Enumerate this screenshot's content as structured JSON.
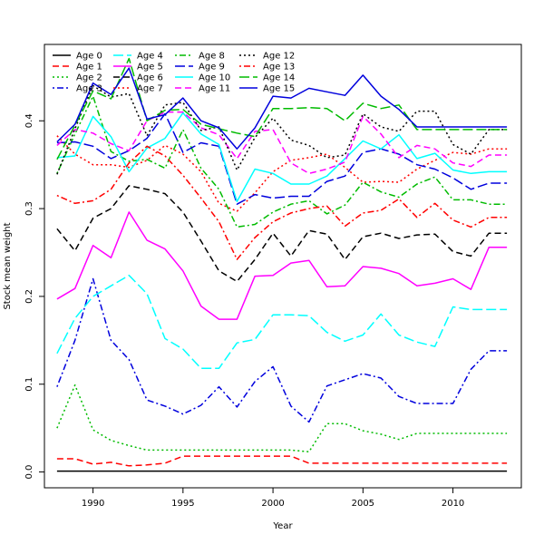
{
  "chart_data": {
    "type": "line",
    "title": "",
    "xlabel": "Year",
    "ylabel": "Stock mean weight",
    "xlim": [
      1987.3,
      2013.8
    ],
    "ylim": [
      -0.018,
      0.487
    ],
    "xticks": [
      1990,
      1995,
      2000,
      2005,
      2010
    ],
    "yticks": [
      0.0,
      0.1,
      0.2,
      0.3,
      0.4
    ],
    "ytick_labels": [
      "0.0",
      "0.1",
      "0.2",
      "0.3",
      "0.4"
    ],
    "grid": false,
    "legend_position": "top-left",
    "x": [
      1988,
      1989,
      1990,
      1991,
      1992,
      1993,
      1994,
      1995,
      1996,
      1997,
      1998,
      1999,
      2000,
      2001,
      2002,
      2003,
      2004,
      2005,
      2006,
      2007,
      2008,
      2009,
      2010,
      2011,
      2012,
      2013
    ],
    "series": [
      {
        "name": "Age 0",
        "color": "#000000",
        "dash": "solid",
        "values": [
          0.001,
          0.001,
          0.001,
          0.001,
          0.001,
          0.001,
          0.001,
          0.001,
          0.001,
          0.001,
          0.001,
          0.001,
          0.001,
          0.001,
          0.001,
          0.001,
          0.001,
          0.001,
          0.001,
          0.001,
          0.001,
          0.001,
          0.001,
          0.001,
          0.001,
          0.001
        ]
      },
      {
        "name": "Age 1",
        "color": "#ff0000",
        "dash": "dashed",
        "values": [
          0.015,
          0.015,
          0.009,
          0.011,
          0.007,
          0.008,
          0.01,
          0.018,
          0.018,
          0.018,
          0.018,
          0.018,
          0.018,
          0.018,
          0.01,
          0.01,
          0.01,
          0.01,
          0.01,
          0.01,
          0.01,
          0.01,
          0.01,
          0.01,
          0.01,
          0.01
        ]
      },
      {
        "name": "Age 2",
        "color": "#00bb00",
        "dash": "dotted",
        "values": [
          0.05,
          0.099,
          0.048,
          0.036,
          0.03,
          0.025,
          0.025,
          0.025,
          0.025,
          0.025,
          0.025,
          0.025,
          0.025,
          0.025,
          0.023,
          0.055,
          0.055,
          0.047,
          0.043,
          0.037,
          0.044,
          0.044,
          0.044,
          0.044,
          0.044,
          0.044
        ]
      },
      {
        "name": "Age 3",
        "color": "#0000dd",
        "dash": "dotdash",
        "values": [
          0.097,
          0.15,
          0.22,
          0.15,
          0.128,
          0.082,
          0.075,
          0.066,
          0.076,
          0.097,
          0.074,
          0.103,
          0.12,
          0.075,
          0.057,
          0.098,
          0.105,
          0.112,
          0.107,
          0.086,
          0.078,
          0.078,
          0.078,
          0.117,
          0.138,
          0.138
        ]
      },
      {
        "name": "Age 4",
        "color": "#00ffff",
        "dash": "longdash",
        "values": [
          0.135,
          0.175,
          0.2,
          0.212,
          0.224,
          0.203,
          0.152,
          0.14,
          0.118,
          0.118,
          0.147,
          0.151,
          0.179,
          0.179,
          0.178,
          0.159,
          0.149,
          0.156,
          0.18,
          0.156,
          0.148,
          0.143,
          0.188,
          0.185,
          0.185,
          0.185
        ]
      },
      {
        "name": "Age 5",
        "color": "#ff00ff",
        "dash": "solid",
        "values": [
          0.197,
          0.209,
          0.258,
          0.244,
          0.296,
          0.264,
          0.254,
          0.229,
          0.189,
          0.174,
          0.174,
          0.223,
          0.224,
          0.238,
          0.241,
          0.211,
          0.212,
          0.234,
          0.232,
          0.226,
          0.212,
          0.215,
          0.22,
          0.208,
          0.256,
          0.256
        ]
      },
      {
        "name": "Age 6",
        "color": "#000000",
        "dash": "dashed",
        "values": [
          0.277,
          0.252,
          0.289,
          0.3,
          0.326,
          0.322,
          0.317,
          0.296,
          0.263,
          0.229,
          0.217,
          0.242,
          0.272,
          0.246,
          0.275,
          0.271,
          0.242,
          0.268,
          0.272,
          0.266,
          0.27,
          0.271,
          0.251,
          0.246,
          0.272,
          0.272
        ]
      },
      {
        "name": "Age 7",
        "color": "#ff0000",
        "dash": "dotted",
        "values": [
          0.383,
          0.362,
          0.35,
          0.35,
          0.347,
          0.355,
          0.372,
          0.362,
          0.342,
          0.306,
          0.297,
          0.318,
          0.342,
          0.355,
          0.358,
          0.362,
          0.347,
          0.33,
          0.331,
          0.33,
          0.345,
          0.355,
          0.364,
          0.362,
          0.368,
          0.368
        ]
      },
      {
        "name": "Age 8",
        "color": "#00bb00",
        "dash": "dotdash",
        "values": [
          0.34,
          0.385,
          0.428,
          0.365,
          0.354,
          0.356,
          0.346,
          0.39,
          0.346,
          0.322,
          0.279,
          0.282,
          0.296,
          0.305,
          0.309,
          0.294,
          0.304,
          0.33,
          0.319,
          0.313,
          0.328,
          0.336,
          0.31,
          0.31,
          0.305,
          0.305
        ]
      },
      {
        "name": "Age 9",
        "color": "#0000dd",
        "dash": "longdash",
        "values": [
          0.375,
          0.376,
          0.371,
          0.357,
          0.366,
          0.38,
          0.408,
          0.364,
          0.375,
          0.371,
          0.305,
          0.316,
          0.312,
          0.314,
          0.314,
          0.331,
          0.337,
          0.364,
          0.368,
          0.362,
          0.35,
          0.345,
          0.335,
          0.322,
          0.329,
          0.329
        ]
      },
      {
        "name": "Age 10",
        "color": "#00ffff",
        "dash": "solid",
        "values": [
          0.358,
          0.36,
          0.405,
          0.382,
          0.342,
          0.369,
          0.38,
          0.409,
          0.385,
          0.373,
          0.308,
          0.345,
          0.34,
          0.328,
          0.328,
          0.337,
          0.357,
          0.377,
          0.368,
          0.384,
          0.357,
          0.363,
          0.344,
          0.34,
          0.342,
          0.342
        ]
      },
      {
        "name": "Age 11",
        "color": "#ff00ff",
        "dash": "dashed",
        "values": [
          0.372,
          0.39,
          0.386,
          0.374,
          0.366,
          0.4,
          0.41,
          0.41,
          0.392,
          0.384,
          0.357,
          0.388,
          0.39,
          0.352,
          0.34,
          0.345,
          0.353,
          0.405,
          0.385,
          0.358,
          0.372,
          0.368,
          0.352,
          0.348,
          0.361,
          0.361
        ]
      },
      {
        "name": "Age 12",
        "color": "#000000",
        "dash": "dotted",
        "values": [
          0.339,
          0.391,
          0.44,
          0.427,
          0.431,
          0.383,
          0.418,
          0.421,
          0.389,
          0.393,
          0.344,
          0.381,
          0.403,
          0.378,
          0.372,
          0.358,
          0.361,
          0.408,
          0.393,
          0.388,
          0.411,
          0.411,
          0.373,
          0.362,
          0.39,
          0.39
        ]
      },
      {
        "name": "Age 13",
        "color": "#ff0000",
        "dash": "dotdash",
        "values": [
          0.315,
          0.306,
          0.309,
          0.322,
          0.352,
          0.371,
          0.36,
          0.338,
          0.312,
          0.285,
          0.242,
          0.267,
          0.285,
          0.295,
          0.3,
          0.303,
          0.28,
          0.295,
          0.298,
          0.311,
          0.29,
          0.306,
          0.287,
          0.279,
          0.29,
          0.29
        ]
      },
      {
        "name": "Age 14",
        "color": "#00bb00",
        "dash": "longdash",
        "values": [
          0.356,
          0.395,
          0.434,
          0.425,
          0.471,
          0.4,
          0.412,
          0.413,
          0.396,
          0.391,
          0.386,
          0.382,
          0.414,
          0.414,
          0.415,
          0.414,
          0.4,
          0.42,
          0.414,
          0.418,
          0.39,
          0.39,
          0.39,
          0.39,
          0.39,
          0.39
        ]
      },
      {
        "name": "Age 15",
        "color": "#0000dd",
        "dash": "solid",
        "values": [
          0.376,
          0.396,
          0.443,
          0.43,
          0.46,
          0.402,
          0.407,
          0.426,
          0.4,
          0.392,
          0.368,
          0.392,
          0.428,
          0.426,
          0.437,
          0.433,
          0.429,
          0.452,
          0.428,
          0.413,
          0.393,
          0.393,
          0.393,
          0.393,
          0.393,
          0.393
        ]
      }
    ]
  }
}
